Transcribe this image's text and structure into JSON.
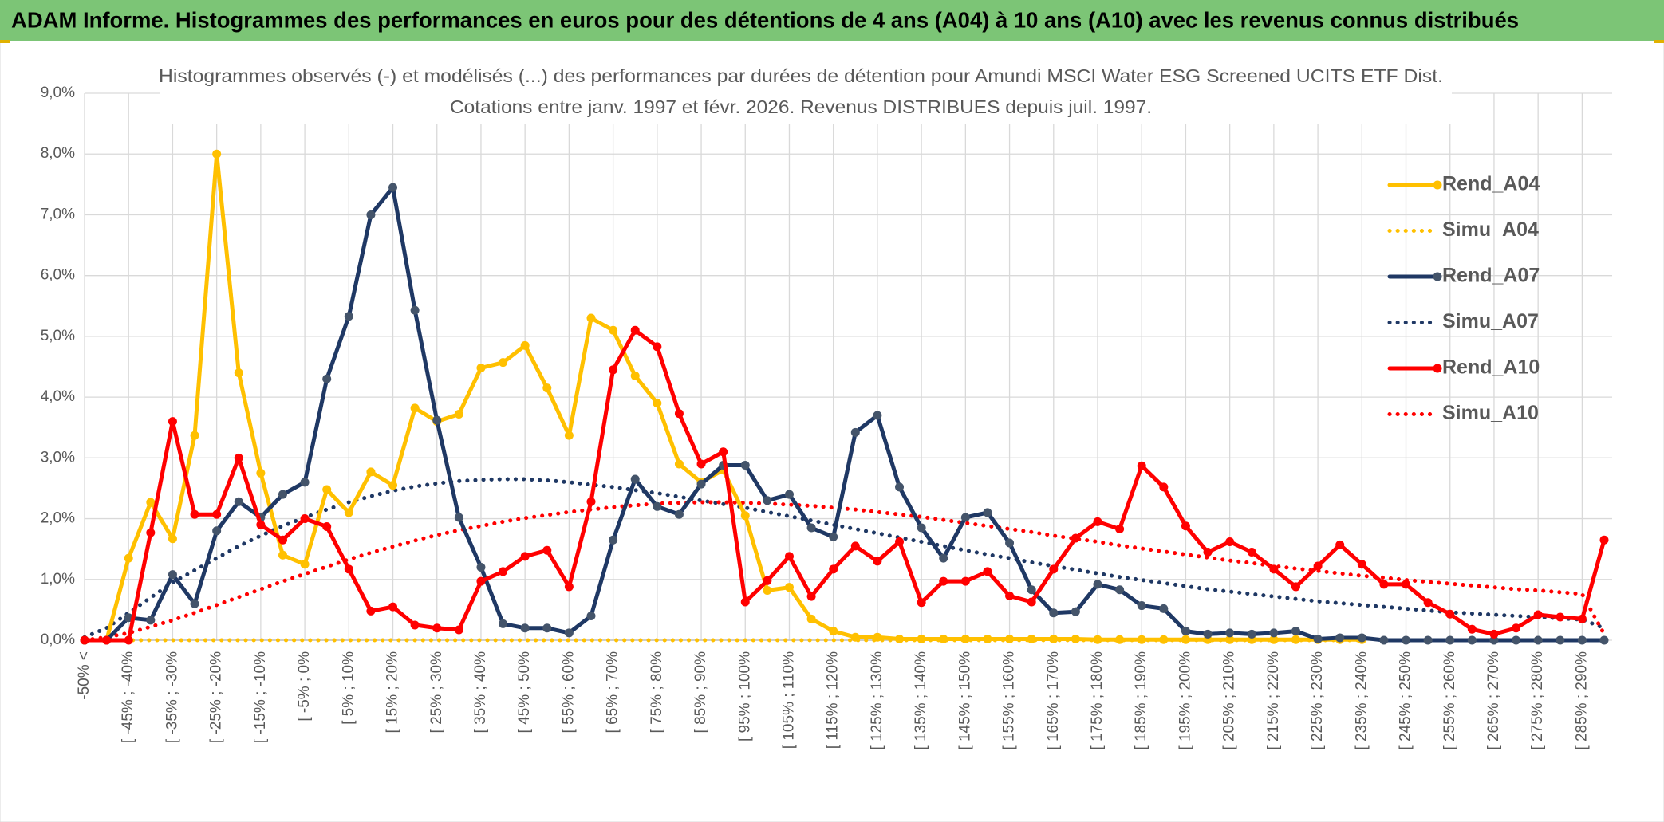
{
  "header": "ADAM Informe. Histogrammes des performances en euros pour des détentions de 4 ans (A04) à 10 ans (A10) avec les revenus connus distribués",
  "chart_data": {
    "type": "line",
    "title": "Histogrammes observés (-) et modélisés (...) des performances par durées de détention pour Amundi MSCI Water ESG Screened UCITS ETF Dist.",
    "subtitle": "Cotations entre janv. 1997 et févr. 2026. Revenus DISTRIBUES depuis juil. 1997.",
    "categories": [
      "-50% <",
      null,
      "[ -45% ; -40%",
      null,
      "[ -35% ; -30%",
      null,
      "[ -25% ; -20%",
      null,
      "[ -15% ; -10%",
      null,
      "[ -5% ; 0%",
      null,
      "[ 5% ; 10%",
      null,
      "[ 15% ; 20%",
      null,
      "[ 25% ; 30%",
      null,
      "[ 35% ; 40%",
      null,
      "[ 45% ; 50%",
      null,
      "[ 55% ; 60%",
      null,
      "[ 65% ; 70%",
      null,
      "[ 75% ; 80%",
      null,
      "[ 85% ; 90%",
      null,
      "[ 95% ; 100%",
      null,
      "[ 105% ; 110%",
      null,
      "[ 115% ; 120%",
      null,
      "[ 125% ; 130%",
      null,
      "[ 135% ; 140%",
      null,
      "[ 145% ; 150%",
      null,
      "[ 155% ; 160%",
      null,
      "[ 165% ; 170%",
      null,
      "[ 175% ; 180%",
      null,
      "[ 185% ; 190%",
      null,
      "[ 195% ; 200%",
      null,
      "[ 205% ; 210%",
      null,
      "[ 215% ; 220%",
      null,
      "[ 225% ; 230%",
      null,
      "[ 235% ; 240%",
      null,
      "[ 245% ; 250%",
      null,
      "[ 255% ; 260%",
      null,
      "[ 265% ; 270%",
      null,
      "[ 275% ; 280%",
      null,
      "[ 285% ; 290%",
      null
    ],
    "ylim": [
      0,
      9
    ],
    "yticks": [
      {
        "value": 0,
        "label": "0,0%"
      },
      {
        "value": 1,
        "label": "1,0%"
      },
      {
        "value": 2,
        "label": "2,0%"
      },
      {
        "value": 3,
        "label": "3,0%"
      },
      {
        "value": 4,
        "label": "4,0%"
      },
      {
        "value": 5,
        "label": "5,0%"
      },
      {
        "value": 6,
        "label": "6,0%"
      },
      {
        "value": 7,
        "label": "7,0%"
      },
      {
        "value": 8,
        "label": "8,0%"
      },
      {
        "value": 9,
        "label": "9,0%"
      }
    ],
    "grid": true,
    "legend": "right",
    "series": [
      {
        "name": "Rend_A04",
        "color": "#ffc000",
        "style": "solid",
        "markers": true,
        "values": [
          0,
          0,
          1.35,
          2.27,
          1.67,
          3.37,
          8.0,
          4.4,
          2.75,
          1.4,
          1.25,
          2.48,
          2.1,
          2.77,
          2.55,
          3.82,
          3.6,
          3.72,
          4.48,
          4.57,
          4.85,
          4.15,
          3.37,
          5.3,
          5.1,
          4.35,
          3.9,
          2.9,
          2.6,
          2.8,
          2.05,
          0.82,
          0.87,
          0.35,
          0.15,
          0.05,
          0.05,
          0.02,
          0.02,
          0.02,
          0.02,
          0.02,
          0.02,
          0.02,
          0.02,
          0.02,
          0.01,
          0.01,
          0.01,
          0.01,
          0.01,
          0.01,
          0.01,
          0.01,
          0.01,
          0.01,
          0.01,
          0.01,
          0.01,
          null,
          null,
          null,
          null,
          null,
          null,
          null,
          null,
          null,
          null,
          null
        ]
      },
      {
        "name": "Simu_A04",
        "color": "#ffc000",
        "style": "dotted",
        "markers": false,
        "values": [
          0,
          0,
          0,
          0,
          0,
          0,
          0,
          0,
          0,
          0,
          0,
          0,
          0,
          0,
          0,
          0,
          0,
          0,
          0,
          0,
          0,
          0,
          0,
          0,
          0,
          0,
          0,
          0,
          0,
          0,
          0,
          0,
          0,
          0,
          0,
          0,
          0,
          0,
          0,
          0,
          0,
          0,
          0,
          0,
          0,
          0,
          0,
          0,
          0,
          0,
          0,
          0,
          0,
          0,
          0,
          0,
          0,
          0,
          0,
          null,
          null,
          null,
          null,
          null,
          null,
          null,
          null,
          null,
          null,
          null
        ]
      },
      {
        "name": "Rend_A07",
        "color": "#1f3864",
        "style": "solid",
        "markers": true,
        "values": [
          0,
          0,
          0.37,
          0.33,
          1.08,
          0.6,
          1.8,
          2.28,
          2.02,
          2.4,
          2.6,
          4.3,
          5.33,
          7.0,
          7.45,
          5.43,
          3.62,
          2.02,
          1.2,
          0.27,
          0.2,
          0.2,
          0.12,
          0.4,
          1.65,
          2.65,
          2.2,
          2.07,
          2.57,
          2.88,
          2.88,
          2.3,
          2.4,
          1.85,
          1.7,
          3.42,
          3.7,
          2.52,
          1.85,
          1.35,
          2.02,
          2.1,
          1.6,
          0.83,
          0.45,
          0.47,
          0.92,
          0.83,
          0.57,
          0.52,
          0.15,
          0.1,
          0.12,
          0.1,
          0.12,
          0.15,
          0.02,
          0.04,
          0.04,
          0,
          0,
          0,
          0,
          0,
          0,
          0,
          0,
          0,
          0,
          0
        ]
      },
      {
        "name": "Simu_A07",
        "color": "#1f3864",
        "style": "dotted",
        "markers": false,
        "values": [
          0.05,
          0.2,
          0.45,
          0.7,
          0.95,
          1.15,
          1.35,
          1.55,
          1.72,
          1.88,
          2.02,
          2.15,
          2.27,
          2.37,
          2.46,
          2.53,
          2.58,
          2.62,
          2.64,
          2.65,
          2.65,
          2.63,
          2.6,
          2.56,
          2.52,
          2.47,
          2.42,
          2.36,
          2.3,
          2.24,
          2.18,
          2.11,
          2.04,
          1.97,
          1.9,
          1.83,
          1.76,
          1.69,
          1.62,
          1.55,
          1.48,
          1.41,
          1.35,
          1.28,
          1.22,
          1.16,
          1.1,
          1.04,
          0.99,
          0.94,
          0.89,
          0.84,
          0.8,
          0.76,
          0.72,
          0.68,
          0.64,
          0.61,
          0.58,
          0.55,
          0.52,
          0.49,
          0.46,
          0.44,
          0.42,
          0.4,
          0.38,
          0.36,
          0.34,
          0.2
        ]
      },
      {
        "name": "Rend_A10",
        "color": "#ff0000",
        "style": "solid",
        "markers": true,
        "values": [
          0,
          0,
          0,
          1.77,
          3.6,
          2.07,
          2.07,
          3.0,
          1.9,
          1.65,
          2.0,
          1.87,
          1.17,
          0.48,
          0.55,
          0.25,
          0.2,
          0.17,
          0.97,
          1.13,
          1.38,
          1.48,
          0.88,
          2.28,
          4.45,
          5.1,
          4.83,
          3.73,
          2.9,
          3.1,
          0.63,
          0.98,
          1.38,
          0.72,
          1.17,
          1.55,
          1.3,
          1.62,
          0.62,
          0.97,
          0.97,
          1.13,
          0.73,
          0.63,
          1.17,
          1.68,
          1.95,
          1.83,
          2.87,
          2.52,
          1.88,
          1.45,
          1.62,
          1.45,
          1.17,
          0.88,
          1.22,
          1.57,
          1.25,
          0.92,
          0.92,
          0.62,
          0.43,
          0.18,
          0.1,
          0.2,
          0.42,
          0.38,
          0.35,
          1.65
        ]
      },
      {
        "name": "Simu_A10",
        "color": "#ff0000",
        "style": "dotted",
        "markers": false,
        "values": [
          0,
          0.05,
          0.12,
          0.22,
          0.33,
          0.45,
          0.58,
          0.71,
          0.84,
          0.97,
          1.09,
          1.21,
          1.33,
          1.44,
          1.54,
          1.64,
          1.73,
          1.81,
          1.88,
          1.95,
          2.01,
          2.06,
          2.11,
          2.15,
          2.19,
          2.22,
          2.25,
          2.26,
          2.27,
          2.27,
          2.26,
          2.25,
          2.23,
          2.21,
          2.18,
          2.15,
          2.11,
          2.07,
          2.03,
          1.98,
          1.93,
          1.88,
          1.83,
          1.78,
          1.72,
          1.67,
          1.62,
          1.56,
          1.51,
          1.46,
          1.41,
          1.36,
          1.31,
          1.27,
          1.22,
          1.18,
          1.14,
          1.1,
          1.06,
          1.03,
          0.99,
          0.96,
          0.93,
          0.9,
          0.87,
          0.84,
          0.82,
          0.79,
          0.76,
          0.1
        ]
      }
    ]
  }
}
